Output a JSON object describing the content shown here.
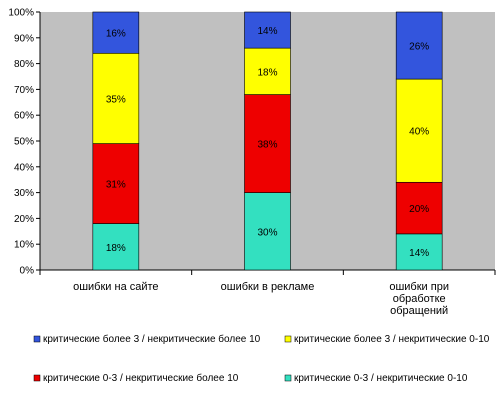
{
  "chart_data": {
    "type": "bar",
    "stacked": true,
    "percent_stacked": true,
    "categories": [
      [
        "ошибки на сайте"
      ],
      [
        "ошибки в рекламе"
      ],
      [
        "ошибки при",
        "обработке",
        "обращений"
      ]
    ],
    "series": [
      {
        "name": "критические 0-3 / некритические 0-10",
        "color": "#33e0c0",
        "values": [
          18,
          30,
          14
        ]
      },
      {
        "name": "критические 0-3 / некритические более 10",
        "color": "#ee0000",
        "values": [
          31,
          38,
          20
        ]
      },
      {
        "name": "критические более 3 / некритические 0-10",
        "color": "#ffff00",
        "values": [
          35,
          18,
          40
        ]
      },
      {
        "name": "критические более 3 / некритические более 10",
        "color": "#3355dd",
        "values": [
          16,
          14,
          26
        ]
      }
    ],
    "y_ticks": [
      "0%",
      "10%",
      "20%",
      "30%",
      "40%",
      "50%",
      "60%",
      "70%",
      "80%",
      "90%",
      "100%"
    ],
    "ylim": [
      0,
      100
    ],
    "plot_background": "#c0c0c0",
    "grid": false,
    "legend_placement": "bottom"
  }
}
